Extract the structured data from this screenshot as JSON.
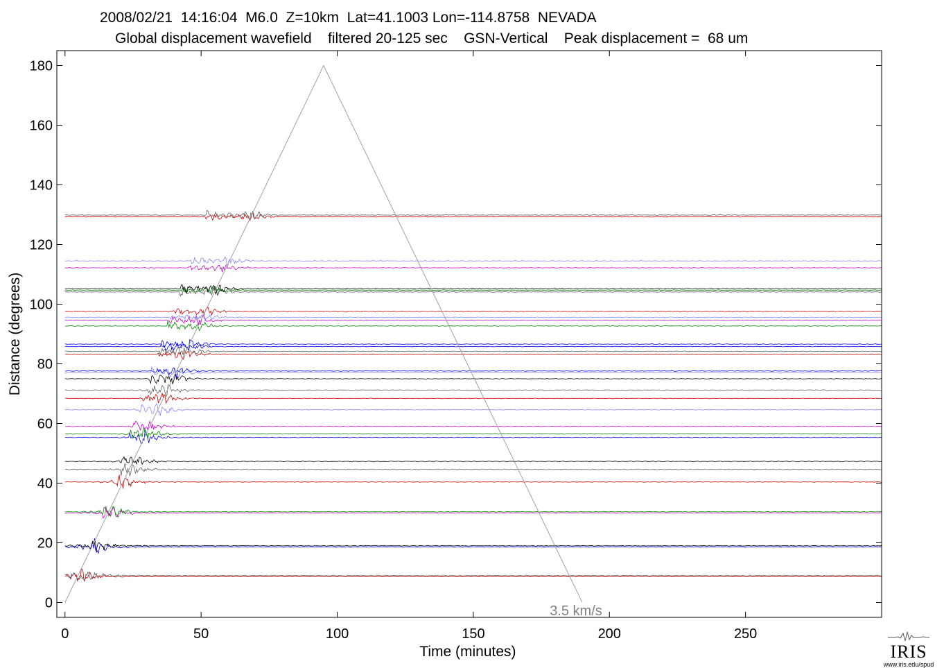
{
  "header": {
    "line1": "2008/02/21  14:16:04  M6.0  Z=10km  Lat=41.1003 Lon=-114.8758  NEVADA",
    "line2": "Global displacement wavefield    filtered 20-125 sec    GSN-Vertical    Peak displacement =  68 um"
  },
  "logo": {
    "name": "IRIS",
    "url": "www.iris.edu/spud"
  },
  "chart_data": {
    "type": "line",
    "title": "",
    "xlabel": "Time (minutes)",
    "ylabel": "Distance (degrees)",
    "xlim": [
      -3,
      300
    ],
    "ylim": [
      -5,
      185
    ],
    "xticks": [
      0,
      50,
      100,
      150,
      200,
      250
    ],
    "yticks": [
      0,
      20,
      40,
      60,
      80,
      100,
      120,
      140,
      160,
      180
    ],
    "grid": false,
    "legend": "none",
    "reference_line": {
      "label": "3.5 km/s",
      "x": [
        0,
        95,
        190
      ],
      "y": [
        0,
        180,
        0
      ],
      "color": "#a0a0a0"
    },
    "traces": [
      {
        "distance": 8.7,
        "color": "#cc0000"
      },
      {
        "distance": 9.0,
        "color": "#606060"
      },
      {
        "distance": 18.6,
        "color": "#0000ee"
      },
      {
        "distance": 19.0,
        "color": "#000000"
      },
      {
        "distance": 30.0,
        "color": "#cc00cc"
      },
      {
        "distance": 30.4,
        "color": "#008800"
      },
      {
        "distance": 40.4,
        "color": "#cc0000"
      },
      {
        "distance": 44.6,
        "color": "#606060"
      },
      {
        "distance": 47.3,
        "color": "#000000"
      },
      {
        "distance": 55.3,
        "color": "#0000ee"
      },
      {
        "distance": 56.5,
        "color": "#008800"
      },
      {
        "distance": 59.0,
        "color": "#cc00cc"
      },
      {
        "distance": 64.6,
        "color": "#8888ff"
      },
      {
        "distance": 68.4,
        "color": "#cc0000"
      },
      {
        "distance": 71.2,
        "color": "#606060"
      },
      {
        "distance": 75.0,
        "color": "#000000"
      },
      {
        "distance": 77.0,
        "color": "#8888ff"
      },
      {
        "distance": 77.6,
        "color": "#0000ee"
      },
      {
        "distance": 83.2,
        "color": "#cc0000"
      },
      {
        "distance": 84.2,
        "color": "#606060"
      },
      {
        "distance": 85.8,
        "color": "#0000ee"
      },
      {
        "distance": 86.6,
        "color": "#0000ee"
      },
      {
        "distance": 92.7,
        "color": "#008800"
      },
      {
        "distance": 94.6,
        "color": "#cc00cc"
      },
      {
        "distance": 95.6,
        "color": "#8888ff"
      },
      {
        "distance": 97.6,
        "color": "#cc0000"
      },
      {
        "distance": 104.1,
        "color": "#606060"
      },
      {
        "distance": 104.7,
        "color": "#008800"
      },
      {
        "distance": 105.2,
        "color": "#000000"
      },
      {
        "distance": 112.2,
        "color": "#cc00cc"
      },
      {
        "distance": 114.5,
        "color": "#8888ff"
      },
      {
        "distance": 129.3,
        "color": "#cc0000"
      },
      {
        "distance": 129.9,
        "color": "#606060"
      }
    ]
  }
}
